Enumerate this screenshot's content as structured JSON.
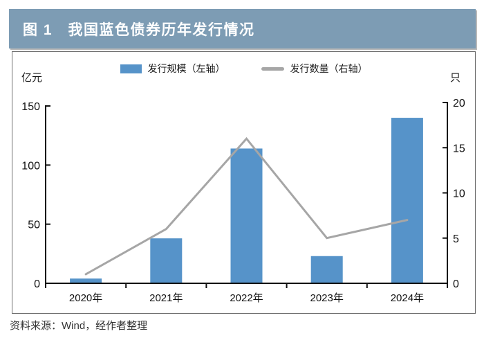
{
  "header": {
    "title": "图 1　我国蓝色债券历年发行情况",
    "bg_color": "#7d9cb4"
  },
  "footer": {
    "source": "资料来源：Wind，经作者整理"
  },
  "colors": {
    "bar": "#5693c9",
    "line": "#a6a6a6",
    "axis": "#111111"
  },
  "chart_data": {
    "type": "bar+line combo",
    "title": "图 1　我国蓝色债券历年发行情况",
    "categories": [
      "2020年",
      "2021年",
      "2022年",
      "2023年",
      "2024年"
    ],
    "series": [
      {
        "name": "发行规模（左轴）",
        "type": "bar",
        "axis": "left",
        "unit": "亿元",
        "color": "#5693c9",
        "values": [
          4,
          38,
          114,
          23,
          140
        ]
      },
      {
        "name": "发行数量（右轴）",
        "type": "line",
        "axis": "right",
        "unit": "只",
        "color": "#a6a6a6",
        "values": [
          1,
          6,
          16,
          5,
          7
        ]
      }
    ],
    "left_axis": {
      "label": "亿元",
      "min": 0,
      "max": 150,
      "ticks": [
        0,
        50,
        100,
        150
      ]
    },
    "right_axis": {
      "label": "只",
      "min": 0,
      "max": 20,
      "ticks": [
        0,
        5,
        10,
        15,
        20
      ]
    },
    "grid": false,
    "legend_position": "top-center"
  }
}
